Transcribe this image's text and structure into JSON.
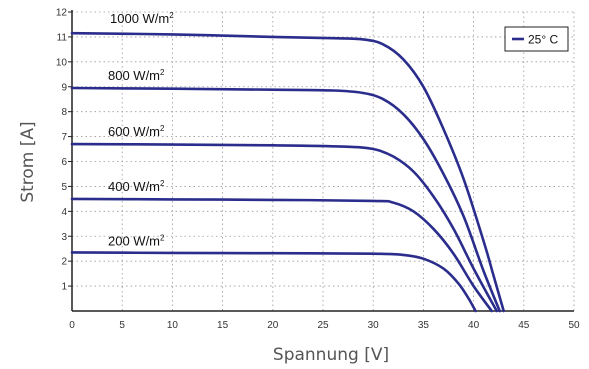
{
  "chart_data": {
    "type": "line",
    "xlabel": "Spannung [V]",
    "ylabel": "Strom [A]",
    "xlim": [
      0,
      50
    ],
    "ylim": [
      0,
      12
    ],
    "xticks": [
      0,
      5,
      10,
      15,
      20,
      25,
      30,
      35,
      40,
      45,
      50
    ],
    "yticks": [
      1,
      2,
      3,
      4,
      5,
      6,
      7,
      8,
      9,
      10,
      11,
      12
    ],
    "grid": true,
    "grid_style": "dotted",
    "legend": {
      "position": "top-right",
      "entries": [
        {
          "label": "25° C",
          "color": "#2b2d8c"
        }
      ]
    },
    "series_color": "#2b2d8c",
    "series": [
      {
        "label_text": "1000 W/m",
        "label_sup": "2",
        "points": [
          [
            0,
            11.15
          ],
          [
            10,
            11.1
          ],
          [
            20,
            11.0
          ],
          [
            26,
            10.95
          ],
          [
            29,
            10.9
          ],
          [
            31,
            10.7
          ],
          [
            33,
            10.1
          ],
          [
            35,
            9.0
          ],
          [
            37,
            7.3
          ],
          [
            39,
            5.3
          ],
          [
            41,
            2.8
          ],
          [
            42,
            1.4
          ],
          [
            43,
            0
          ]
        ]
      },
      {
        "label_text": "800 W/m",
        "label_sup": "2",
        "points": [
          [
            0,
            8.95
          ],
          [
            10,
            8.92
          ],
          [
            20,
            8.88
          ],
          [
            26,
            8.85
          ],
          [
            29,
            8.75
          ],
          [
            31,
            8.5
          ],
          [
            33,
            7.9
          ],
          [
            35,
            6.9
          ],
          [
            37,
            5.5
          ],
          [
            39,
            3.8
          ],
          [
            41,
            1.6
          ],
          [
            42.6,
            0
          ]
        ]
      },
      {
        "label_text": "600 W/m",
        "label_sup": "2",
        "points": [
          [
            0,
            6.7
          ],
          [
            10,
            6.68
          ],
          [
            20,
            6.65
          ],
          [
            27,
            6.6
          ],
          [
            30,
            6.5
          ],
          [
            32,
            6.2
          ],
          [
            34,
            5.6
          ],
          [
            36,
            4.6
          ],
          [
            38,
            3.3
          ],
          [
            40,
            1.7
          ],
          [
            42.3,
            0
          ]
        ]
      },
      {
        "label_text": "400 W/m",
        "label_sup": "2",
        "points": [
          [
            0,
            4.5
          ],
          [
            10,
            4.48
          ],
          [
            20,
            4.46
          ],
          [
            30,
            4.42
          ],
          [
            32,
            4.35
          ],
          [
            34,
            4.0
          ],
          [
            36,
            3.3
          ],
          [
            38,
            2.3
          ],
          [
            40,
            1.0
          ],
          [
            41.8,
            0
          ]
        ]
      },
      {
        "label_text": "200 W/m",
        "label_sup": "2",
        "points": [
          [
            0,
            2.35
          ],
          [
            10,
            2.33
          ],
          [
            20,
            2.32
          ],
          [
            30,
            2.3
          ],
          [
            33,
            2.25
          ],
          [
            35,
            2.1
          ],
          [
            37,
            1.7
          ],
          [
            38.5,
            1.1
          ],
          [
            39.5,
            0.5
          ],
          [
            40.2,
            0
          ]
        ]
      }
    ]
  }
}
